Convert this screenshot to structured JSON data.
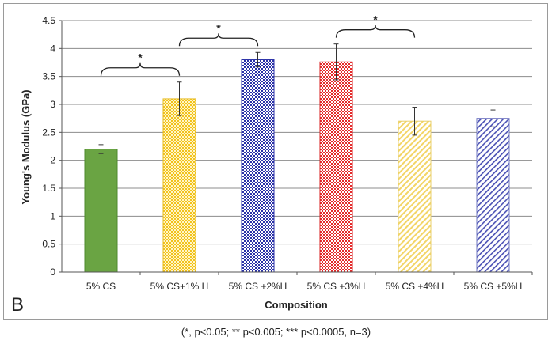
{
  "panel_label": "B",
  "footnote": "(*, p<0.05; ** p<0.005; *** p<0.0005, n=3)",
  "chart_data": {
    "type": "bar",
    "title": "",
    "xlabel": "Composition",
    "ylabel": "Young's Modulus (GPa)",
    "ylim": [
      0,
      4.5
    ],
    "yticks": [
      0,
      0.5,
      1,
      1.5,
      2,
      2.5,
      3,
      3.5,
      4,
      4.5
    ],
    "ytick_labels": [
      "0",
      "0.5",
      "1",
      "1.5",
      "2",
      "2.5",
      "3",
      "3.5",
      "4",
      "4.5"
    ],
    "grid": "horizontal",
    "categories": [
      "5% CS",
      "5% CS+1% H",
      "5% CS +2%H",
      "5% CS +3%H",
      "5% CS +4%H",
      "5% CS +5%H"
    ],
    "values": [
      2.2,
      3.1,
      3.8,
      3.76,
      2.7,
      2.75
    ],
    "errors": [
      0.08,
      0.3,
      0.13,
      0.32,
      0.25,
      0.15
    ],
    "bar_colors": [
      "#6aa443",
      "#ffd43d",
      "#2b32a8",
      "#e42a2a",
      "#f8e27c",
      "#6e74c0"
    ],
    "bar_patterns": [
      "solid",
      "checker",
      "checker",
      "checker",
      "diagonal",
      "diagonal"
    ],
    "significance": [
      {
        "from": 0,
        "to": 1,
        "label": "*"
      },
      {
        "from": 1,
        "to": 2,
        "label": "*"
      },
      {
        "from": 3,
        "to": 4,
        "label": "*"
      }
    ]
  }
}
